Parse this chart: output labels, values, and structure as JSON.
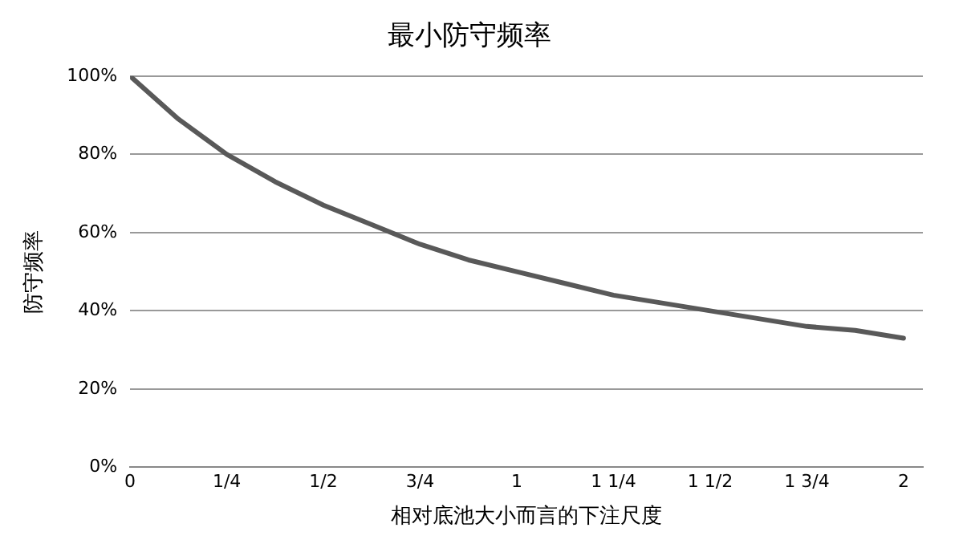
{
  "chart_data": {
    "type": "line",
    "title": "最小防守频率",
    "xlabel": "相对底池大小而言的下注尺度",
    "ylabel": "防守频率",
    "x": [
      0,
      0.125,
      0.25,
      0.375,
      0.5,
      0.625,
      0.75,
      0.875,
      1,
      1.125,
      1.25,
      1.375,
      1.5,
      1.625,
      1.75,
      1.875,
      2
    ],
    "series": [
      {
        "color": "#595959",
        "values": [
          100,
          89,
          80,
          73,
          67,
          62,
          57,
          53,
          50,
          47,
          44,
          42,
          40,
          38,
          36,
          35,
          33
        ]
      }
    ],
    "xlim": [
      0,
      2.05
    ],
    "xticks": [
      0,
      {
        "value": 0.25,
        "label": "1/4"
      },
      {
        "value": 0.5,
        "label": "1/2"
      },
      {
        "value": 0.75,
        "label": "3/4"
      },
      1,
      {
        "value": 1.25,
        "label": "1 1/4"
      },
      {
        "value": 1.5,
        "label": "1 1/2"
      },
      {
        "value": 1.75,
        "label": "1 3/4"
      },
      2
    ],
    "ylim": [
      0,
      100
    ],
    "yticks": [
      {
        "value": 0,
        "label": "0%"
      },
      {
        "value": 20,
        "label": "20%"
      },
      {
        "value": 40,
        "label": "40%"
      },
      {
        "value": 60,
        "label": "60%"
      },
      {
        "value": 80,
        "label": "80%"
      },
      {
        "value": 100,
        "label": "100%"
      }
    ],
    "grid": "y",
    "legend": false,
    "marker": "none",
    "line_style": "solid"
  }
}
